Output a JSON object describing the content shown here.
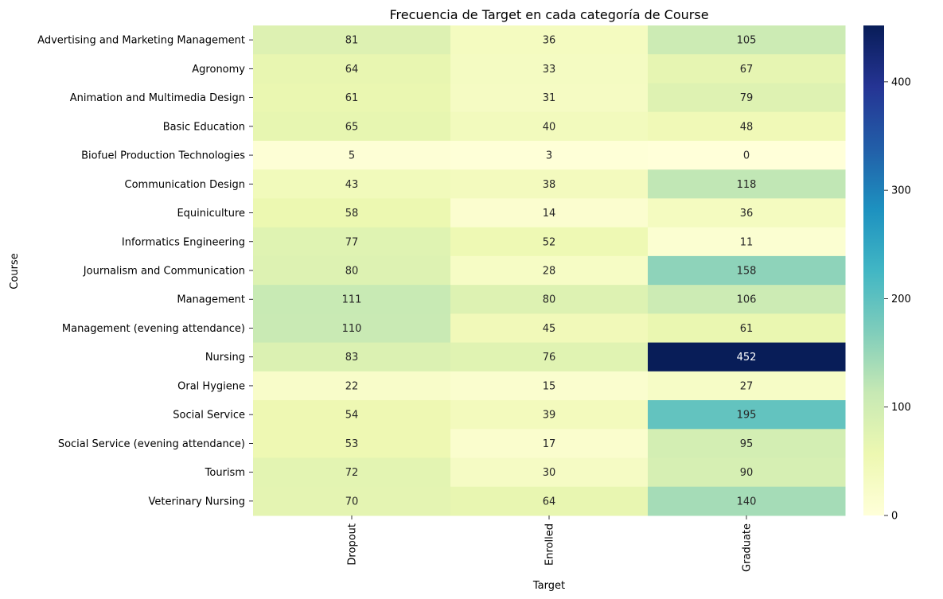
{
  "chart_data": {
    "type": "heatmap",
    "title": "Frecuencia de Target en cada categoría de Course",
    "xlabel": "Target",
    "ylabel": "Course",
    "columns": [
      "Dropout",
      "Enrolled",
      "Graduate"
    ],
    "rows": [
      "Advertising and Marketing Management",
      "Agronomy",
      "Animation and Multimedia Design",
      "Basic Education",
      "Biofuel Production Technologies",
      "Communication Design",
      "Equiniculture",
      "Informatics Engineering",
      "Journalism and Communication",
      "Management",
      "Management (evening attendance)",
      "Nursing",
      "Oral Hygiene",
      "Social Service",
      "Social Service (evening attendance)",
      "Tourism",
      "Veterinary Nursing"
    ],
    "values": [
      [
        81,
        36,
        105
      ],
      [
        64,
        33,
        67
      ],
      [
        61,
        31,
        79
      ],
      [
        65,
        40,
        48
      ],
      [
        5,
        3,
        0
      ],
      [
        43,
        38,
        118
      ],
      [
        58,
        14,
        36
      ],
      [
        77,
        52,
        11
      ],
      [
        80,
        28,
        158
      ],
      [
        111,
        80,
        106
      ],
      [
        110,
        45,
        61
      ],
      [
        83,
        76,
        452
      ],
      [
        22,
        15,
        27
      ],
      [
        54,
        39,
        195
      ],
      [
        53,
        17,
        95
      ],
      [
        72,
        30,
        90
      ],
      [
        70,
        64,
        140
      ]
    ],
    "colormap": "YlGnBu",
    "vmin": 0,
    "vmax": 452,
    "colorbar_ticks": [
      0,
      100,
      200,
      300,
      400
    ],
    "annotations": true,
    "grid": false
  }
}
